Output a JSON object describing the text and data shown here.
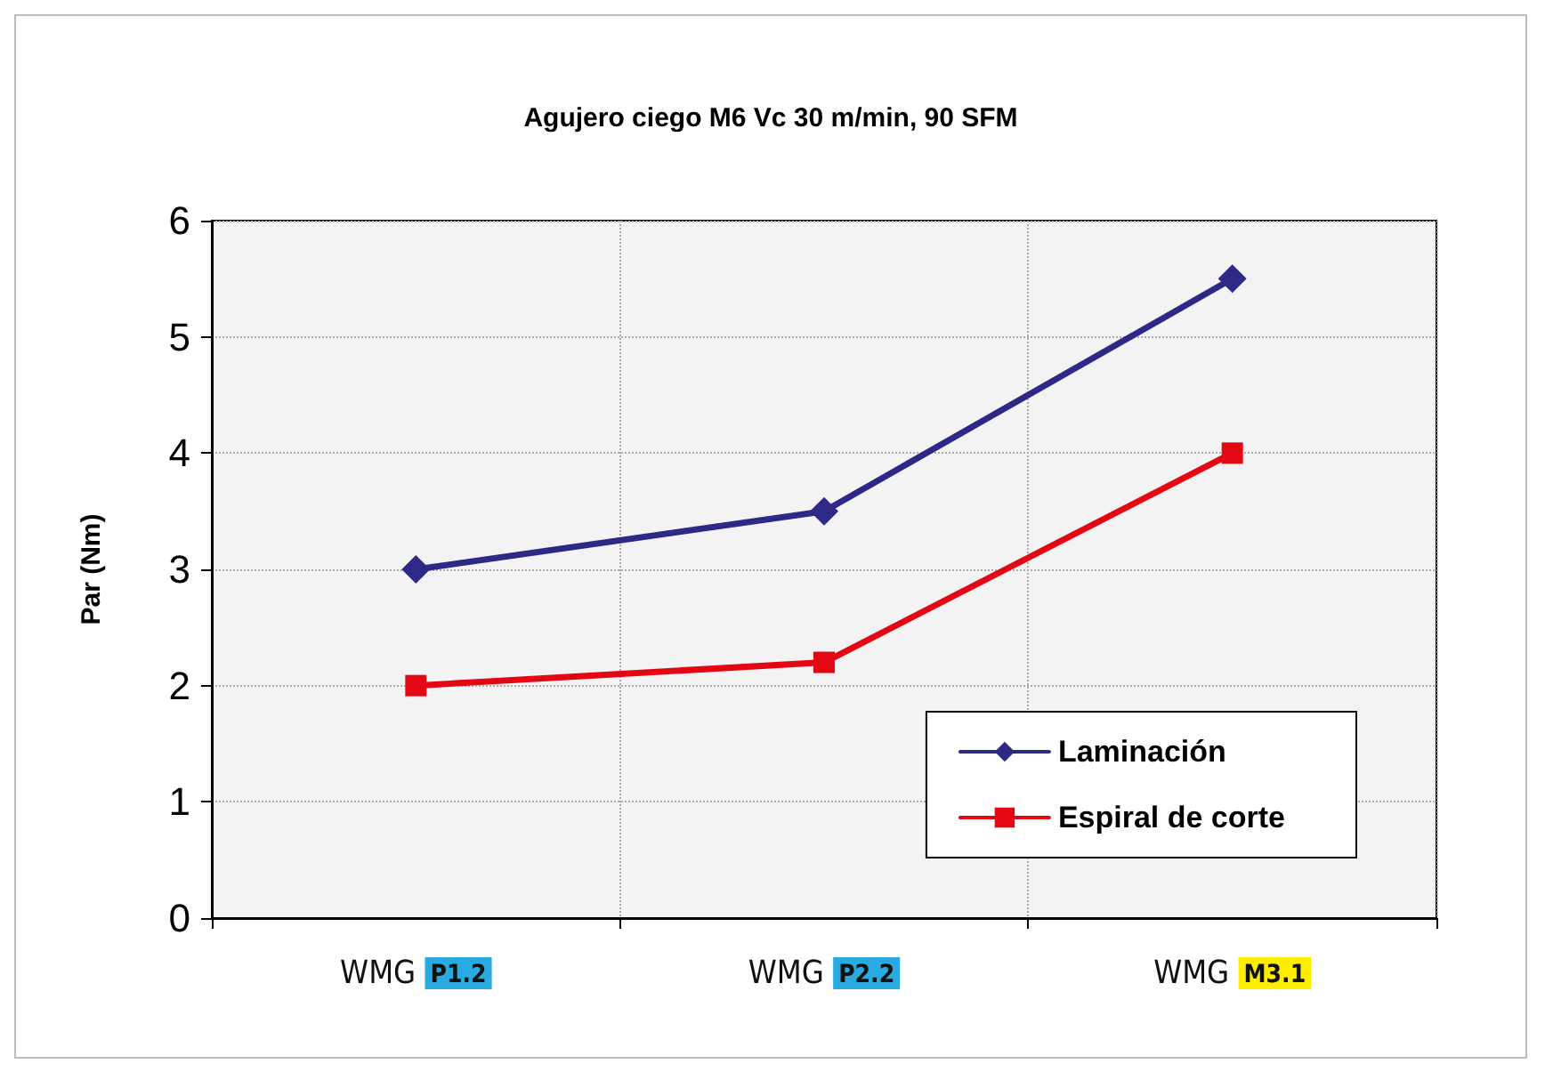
{
  "chart_data": {
    "type": "line",
    "title": "Agujero ciego M6 Vc 30 m/min, 90 SFM",
    "ylabel": "Par (Nm)",
    "categories": [
      "WMG P1.2",
      "WMG P2.2",
      "WMG M3.1"
    ],
    "series": [
      {
        "name": "Laminación",
        "color": "#2e2886",
        "values": [
          3.0,
          3.5,
          5.5
        ],
        "marker": "diamond"
      },
      {
        "name": "Espiral de corte",
        "color": "#e30613",
        "values": [
          2.0,
          2.2,
          4.0
        ],
        "marker": "square"
      }
    ],
    "ylim": [
      0,
      6
    ],
    "yticks": [
      0,
      1,
      2,
      3,
      4,
      5,
      6
    ],
    "grid": true,
    "legend": "bottom right",
    "line_style": "solid"
  }
}
